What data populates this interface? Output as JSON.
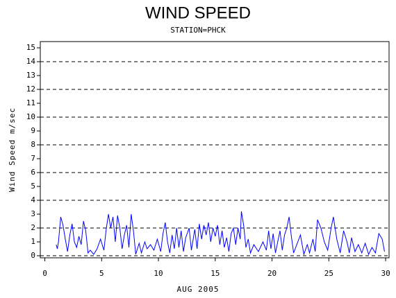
{
  "chart_data": {
    "type": "line",
    "title": "WIND SPEED",
    "subtitle": "STATION=PHCK",
    "y_label": "Wind Speed m/sec",
    "x_label": "AUG 2005",
    "xlim": [
      -0.4,
      30.3
    ],
    "ylim": [
      -0.15,
      15.45
    ],
    "xticks": [
      0,
      5,
      10,
      15,
      20,
      25,
      30
    ],
    "yticks": [
      0,
      1,
      2,
      3,
      4,
      5,
      6,
      7,
      8,
      9,
      10,
      11,
      12,
      13,
      14,
      15
    ],
    "grid": {
      "y": [
        0,
        2,
        4,
        6,
        8,
        10,
        12,
        14
      ],
      "style": "dashed"
    },
    "series": [
      {
        "color": "#0000ff",
        "x": [
          1.0,
          1.1,
          1.2,
          1.4,
          1.6,
          1.8,
          2.0,
          2.2,
          2.4,
          2.6,
          2.8,
          3.0,
          3.2,
          3.4,
          3.6,
          3.8,
          4.0,
          4.3,
          4.6,
          4.9,
          5.2,
          5.4,
          5.6,
          5.8,
          6.0,
          6.2,
          6.4,
          6.6,
          6.8,
          7.0,
          7.2,
          7.4,
          7.6,
          7.8,
          8.0,
          8.3,
          8.5,
          8.8,
          9.0,
          9.3,
          9.6,
          9.9,
          10.2,
          10.4,
          10.6,
          10.8,
          11.0,
          11.2,
          11.4,
          11.6,
          11.8,
          12.0,
          12.2,
          12.4,
          12.7,
          12.9,
          13.2,
          13.4,
          13.6,
          13.8,
          14.0,
          14.2,
          14.4,
          14.6,
          14.8,
          15.0,
          15.2,
          15.4,
          15.6,
          15.8,
          16.0,
          16.2,
          16.4,
          16.6,
          16.8,
          17.0,
          17.2,
          17.3,
          17.5,
          17.7,
          17.9,
          18.1,
          18.4,
          18.8,
          19.2,
          19.5,
          19.7,
          19.9,
          20.1,
          20.3,
          20.5,
          20.7,
          20.9,
          21.1,
          21.3,
          21.5,
          21.7,
          21.9,
          22.5,
          22.8,
          23.1,
          23.3,
          23.6,
          23.8,
          24.0,
          24.3,
          24.6,
          24.9,
          25.2,
          25.4,
          25.7,
          26.0,
          26.3,
          26.6,
          26.8,
          27.0,
          27.3,
          27.6,
          27.9,
          28.2,
          28.5,
          28.8,
          29.1,
          29.4,
          29.7,
          29.9
        ],
        "values": [
          0.8,
          0.5,
          1.0,
          2.8,
          2.2,
          1.2,
          0.3,
          1.5,
          2.3,
          1.0,
          0.6,
          1.4,
          0.8,
          2.5,
          1.8,
          0.2,
          0.4,
          0.1,
          0.5,
          1.2,
          0.4,
          1.9,
          3.0,
          2.0,
          2.8,
          1.0,
          2.9,
          2.0,
          0.5,
          1.5,
          2.2,
          0.6,
          3.0,
          1.8,
          0.1,
          0.9,
          0.2,
          1.0,
          0.5,
          0.8,
          0.4,
          1.2,
          0.3,
          1.6,
          2.4,
          1.0,
          0.2,
          1.5,
          0.5,
          2.0,
          0.6,
          1.8,
          0.3,
          1.3,
          2.0,
          0.4,
          1.9,
          0.5,
          2.3,
          1.2,
          2.2,
          1.5,
          2.4,
          1.0,
          2.0,
          1.4,
          2.2,
          0.8,
          1.8,
          0.6,
          1.3,
          0.3,
          1.6,
          2.0,
          0.8,
          2.0,
          1.2,
          3.2,
          2.2,
          0.6,
          1.2,
          0.2,
          0.8,
          0.3,
          1.0,
          0.4,
          1.8,
          0.5,
          1.6,
          0.2,
          1.0,
          1.8,
          0.4,
          1.5,
          2.0,
          2.8,
          1.4,
          0.2,
          1.5,
          0.1,
          0.8,
          0.2,
          1.2,
          0.3,
          2.6,
          2.0,
          1.0,
          0.4,
          2.0,
          2.8,
          1.2,
          0.2,
          1.8,
          1.0,
          0.2,
          1.3,
          0.3,
          0.8,
          0.2,
          0.9,
          0.1,
          0.6,
          0.2,
          1.6,
          1.2,
          0.3
        ]
      }
    ]
  }
}
